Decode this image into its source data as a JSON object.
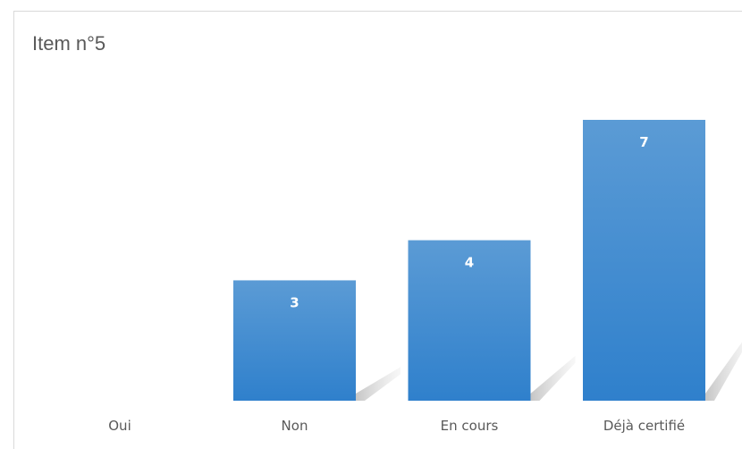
{
  "chart_data": {
    "type": "bar",
    "title": "Item n°5",
    "categories": [
      "Oui",
      "Non",
      "En cours",
      "Déjà certifié"
    ],
    "values": [
      0,
      3,
      4,
      7
    ],
    "ylim": [
      0,
      7
    ],
    "grid": false,
    "legend": "none",
    "data_labels": [
      "",
      "3",
      "4",
      "7"
    ],
    "colors": {
      "bar_top": "#5b9bd5",
      "bar_bottom": "#2f80cc",
      "label": "#ffffff",
      "axis_text": "#595959",
      "frame": "#d9d9d9"
    }
  }
}
